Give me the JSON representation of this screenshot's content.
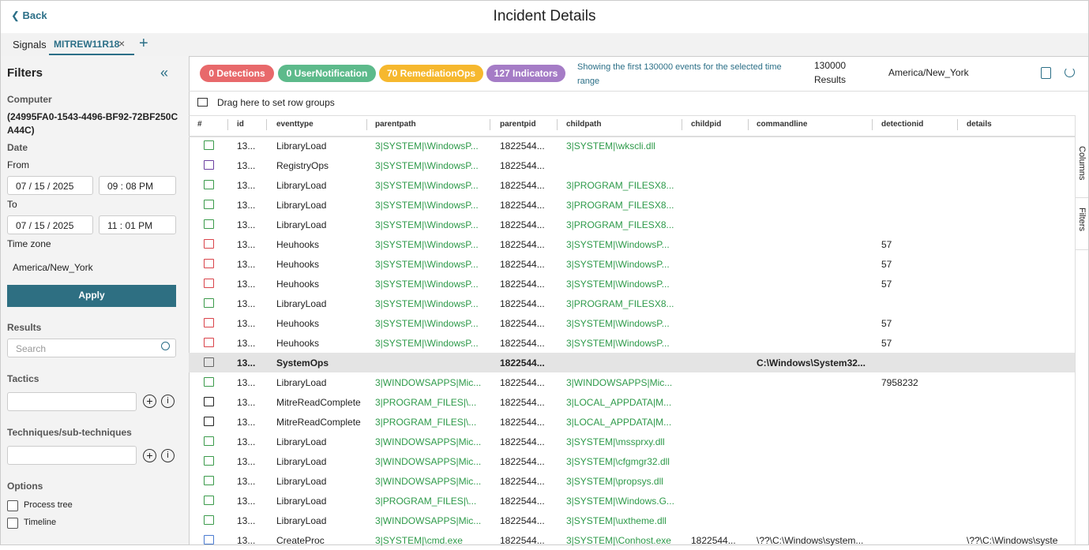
{
  "header": {
    "back": "Back",
    "title": "Incident Details"
  },
  "tabs": [
    "Signals",
    "MITREW11R18"
  ],
  "filters": {
    "title": "Filters",
    "computer_label": "Computer",
    "computer": "(24995FA0-1543-4496-BF92-72BF250CA44C)",
    "date_label": "Date",
    "from_label": "From",
    "from_date": "07 / 15 / 2025",
    "from_time": "09 : 08  PM",
    "to_label": "To",
    "to_date": "07 / 15 / 2025",
    "to_time": "11 : 01  PM",
    "timezone_label": "Time zone",
    "timezone": "America/New_York",
    "apply": "Apply",
    "results_label": "Results",
    "search_placeholder": "Search",
    "tactics_label": "Tactics",
    "techniques_label": "Techniques/sub-techniques",
    "options_label": "Options",
    "options": [
      "Process tree",
      "Timeline"
    ]
  },
  "toolbar": {
    "badges": [
      {
        "label": "0 Detections",
        "color": "#e8696b"
      },
      {
        "label": "0 UserNotification",
        "color": "#5dba8b"
      },
      {
        "label": "70 RemediationOps",
        "color": "#f6b82e"
      },
      {
        "label": "127 Indicators",
        "color": "#a57cc6"
      }
    ],
    "showing": "Showing the first 130000 events for the selected time range",
    "results_count": "130000",
    "results_word": "Results",
    "timezone": "America/New_York"
  },
  "group_hint": "Drag here to set row groups",
  "side_tabs": [
    "Columns",
    "Filters"
  ],
  "table": {
    "columns": [
      "#",
      "id",
      "eventtype",
      "parentpath",
      "parentpid",
      "childpath",
      "childpid",
      "commandline",
      "detectionid",
      "details"
    ],
    "rows": [
      {
        "icon_color": "#3a9a4a",
        "cells": [
          "13...",
          "LibraryLoad",
          "3|SYSTEM|\\WindowsP...",
          "1822544...",
          "3|SYSTEM|\\wkscli.dll",
          "",
          "",
          "",
          ""
        ]
      },
      {
        "icon_color": "#6b3fa0",
        "cells": [
          "13...",
          "RegistryOps",
          "3|SYSTEM|\\WindowsP...",
          "1822544...",
          "",
          "",
          "",
          "",
          ""
        ]
      },
      {
        "icon_color": "#3a9a4a",
        "cells": [
          "13...",
          "LibraryLoad",
          "3|SYSTEM|\\WindowsP...",
          "1822544...",
          "3|PROGRAM_FILESX8...",
          "",
          "",
          "",
          ""
        ]
      },
      {
        "icon_color": "#3a9a4a",
        "cells": [
          "13...",
          "LibraryLoad",
          "3|SYSTEM|\\WindowsP...",
          "1822544...",
          "3|PROGRAM_FILESX8...",
          "",
          "",
          "",
          ""
        ]
      },
      {
        "icon_color": "#3a9a4a",
        "cells": [
          "13...",
          "LibraryLoad",
          "3|SYSTEM|\\WindowsP...",
          "1822544...",
          "3|PROGRAM_FILESX8...",
          "",
          "",
          "",
          ""
        ]
      },
      {
        "icon_color": "#d9434a",
        "cells": [
          "13...",
          "Heuhooks",
          "3|SYSTEM|\\WindowsP...",
          "1822544...",
          "3|SYSTEM|\\WindowsP...",
          "",
          "",
          "57",
          ""
        ]
      },
      {
        "icon_color": "#d9434a",
        "cells": [
          "13...",
          "Heuhooks",
          "3|SYSTEM|\\WindowsP...",
          "1822544...",
          "3|SYSTEM|\\WindowsP...",
          "",
          "",
          "57",
          ""
        ]
      },
      {
        "icon_color": "#d9434a",
        "cells": [
          "13...",
          "Heuhooks",
          "3|SYSTEM|\\WindowsP...",
          "1822544...",
          "3|SYSTEM|\\WindowsP...",
          "",
          "",
          "57",
          ""
        ]
      },
      {
        "icon_color": "#3a9a4a",
        "cells": [
          "13...",
          "LibraryLoad",
          "3|SYSTEM|\\WindowsP...",
          "1822544...",
          "3|PROGRAM_FILESX8...",
          "",
          "",
          "",
          ""
        ]
      },
      {
        "icon_color": "#d9434a",
        "cells": [
          "13...",
          "Heuhooks",
          "3|SYSTEM|\\WindowsP...",
          "1822544...",
          "3|SYSTEM|\\WindowsP...",
          "",
          "",
          "57",
          ""
        ]
      },
      {
        "icon_color": "#d9434a",
        "cells": [
          "13...",
          "Heuhooks",
          "3|SYSTEM|\\WindowsP...",
          "1822544...",
          "3|SYSTEM|\\WindowsP...",
          "",
          "",
          "57",
          ""
        ]
      },
      {
        "icon_color": "#666666",
        "selected": true,
        "cells": [
          "13...",
          "SystemOps",
          "",
          "1822544...",
          "",
          "",
          "C:\\Windows\\System32...",
          "",
          ""
        ]
      },
      {
        "icon_color": "#3a9a4a",
        "cells": [
          "13...",
          "LibraryLoad",
          "3|WINDOWSAPPS|Mic...",
          "1822544...",
          "3|WINDOWSAPPS|Mic...",
          "",
          "",
          "7958232",
          ""
        ]
      },
      {
        "icon_color": "#222222",
        "cells": [
          "13...",
          "MitreReadComplete",
          "3|PROGRAM_FILES|\\...",
          "1822544...",
          "3|LOCAL_APPDATA|M...",
          "",
          "",
          "",
          ""
        ]
      },
      {
        "icon_color": "#222222",
        "cells": [
          "13...",
          "MitreReadComplete",
          "3|PROGRAM_FILES|\\...",
          "1822544...",
          "3|LOCAL_APPDATA|M...",
          "",
          "",
          "",
          ""
        ]
      },
      {
        "icon_color": "#3a9a4a",
        "cells": [
          "13...",
          "LibraryLoad",
          "3|WINDOWSAPPS|Mic...",
          "1822544...",
          "3|SYSTEM|\\mssprxy.dll",
          "",
          "",
          "",
          ""
        ]
      },
      {
        "icon_color": "#3a9a4a",
        "cells": [
          "13...",
          "LibraryLoad",
          "3|WINDOWSAPPS|Mic...",
          "1822544...",
          "3|SYSTEM|\\cfgmgr32.dll",
          "",
          "",
          "",
          ""
        ]
      },
      {
        "icon_color": "#3a9a4a",
        "cells": [
          "13...",
          "LibraryLoad",
          "3|WINDOWSAPPS|Mic...",
          "1822544...",
          "3|SYSTEM|\\propsys.dll",
          "",
          "",
          "",
          ""
        ]
      },
      {
        "icon_color": "#3a9a4a",
        "cells": [
          "13...",
          "LibraryLoad",
          "3|PROGRAM_FILES|\\...",
          "1822544...",
          "3|SYSTEM|\\Windows.G...",
          "",
          "",
          "",
          ""
        ]
      },
      {
        "icon_color": "#3a9a4a",
        "cells": [
          "13...",
          "LibraryLoad",
          "3|WINDOWSAPPS|Mic...",
          "1822544...",
          "3|SYSTEM|\\uxtheme.dll",
          "",
          "",
          "",
          ""
        ]
      },
      {
        "icon_color": "#4a7bd0",
        "cells": [
          "13...",
          "CreateProc",
          "3|SYSTEM|\\cmd.exe",
          "1822544...",
          "3|SYSTEM|\\Conhost.exe",
          "1822544...",
          "\\??\\C:\\Windows\\system...",
          "",
          "\\??\\C:\\Windows\\syste"
        ]
      }
    ]
  }
}
